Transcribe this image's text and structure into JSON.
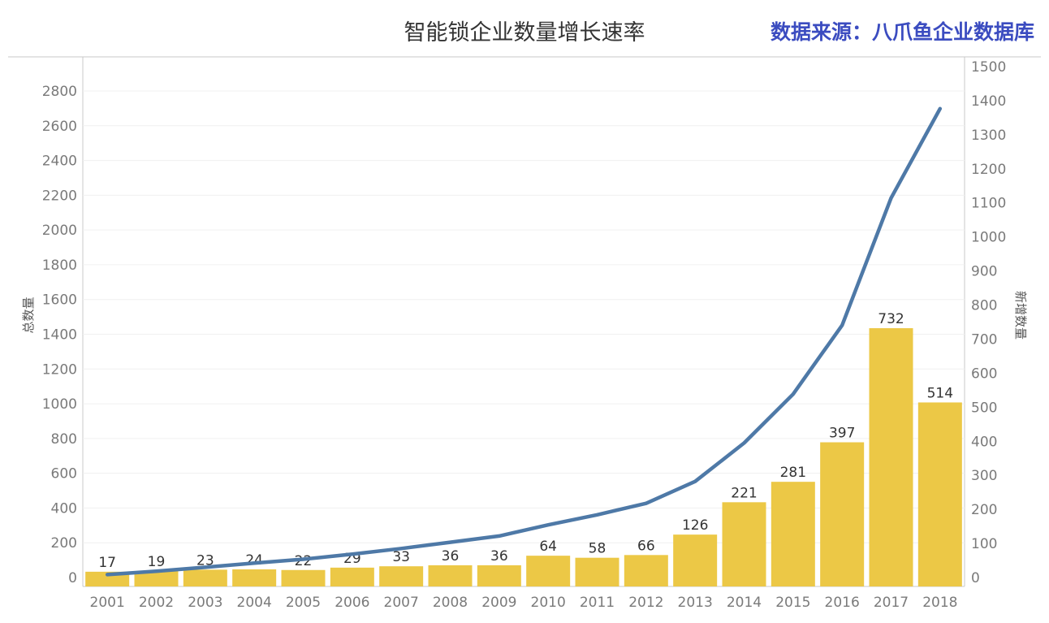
{
  "title": "智能锁企业数量增长速率",
  "source": "数据来源：八爪鱼企业数据库",
  "chart_data": {
    "type": "bar",
    "categories": [
      "2001",
      "2002",
      "2003",
      "2004",
      "2005",
      "2006",
      "2007",
      "2008",
      "2009",
      "2010",
      "2011",
      "2012",
      "2013",
      "2014",
      "2015",
      "2016",
      "2017",
      "2018"
    ],
    "series": [
      {
        "name": "新增数量",
        "axis": "right",
        "type": "bar",
        "color": "#ecc846",
        "values": [
          17,
          19,
          23,
          24,
          22,
          29,
          33,
          36,
          36,
          64,
          58,
          66,
          126,
          221,
          281,
          397,
          732,
          514
        ]
      },
      {
        "name": "总数量",
        "axis": "left",
        "type": "line",
        "color": "#4e79a7",
        "values": [
          17,
          36,
          59,
          83,
          105,
          134,
          167,
          203,
          239,
          303,
          361,
          427,
          553,
          774,
          1055,
          1452,
          2184,
          2698
        ]
      }
    ],
    "y_left": {
      "label": "总数量",
      "ylim": [
        0,
        2800
      ],
      "ticks": [
        0,
        200,
        400,
        600,
        800,
        1000,
        1200,
        1400,
        1600,
        1800,
        2000,
        2200,
        2400,
        2600,
        2800
      ]
    },
    "y_right": {
      "label": "新增数量",
      "ylim": [
        0,
        1500
      ],
      "ticks": [
        0,
        100,
        200,
        300,
        400,
        500,
        600,
        700,
        800,
        900,
        1000,
        1100,
        1200,
        1300,
        1400,
        1500
      ]
    },
    "grid": true,
    "legend": "none"
  }
}
